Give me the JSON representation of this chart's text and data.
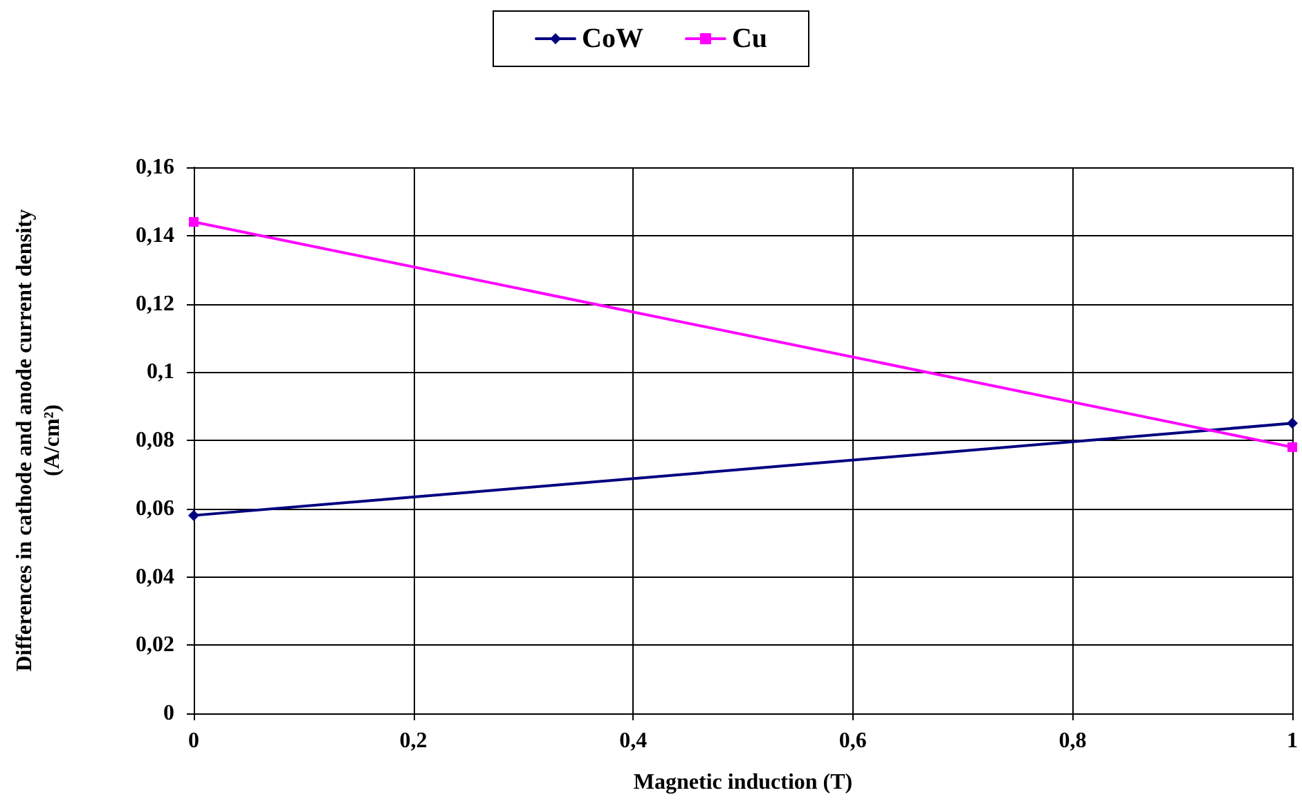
{
  "chart_data": {
    "type": "line",
    "xlabel": "Magnetic induction (T)",
    "ylabel": "Differences in cathode and anode current density\n(A/cm²)",
    "xlim": [
      0,
      1
    ],
    "xticks": [
      0,
      {
        "value": 0.2,
        "label": "0,2"
      },
      {
        "value": 0.4,
        "label": "0,4"
      },
      {
        "value": 0.6,
        "label": "0,6"
      },
      {
        "value": 0.8,
        "label": "0,8"
      },
      1
    ],
    "ylim": [
      0,
      0.16
    ],
    "yticks": [
      0,
      {
        "value": 0.02,
        "label": "0,02"
      },
      {
        "value": 0.04,
        "label": "0,04"
      },
      {
        "value": 0.06,
        "label": "0,06"
      },
      {
        "value": 0.08,
        "label": "0,08"
      },
      {
        "value": 0.1,
        "label": "0,1"
      },
      {
        "value": 0.12,
        "label": "0,12"
      },
      {
        "value": 0.14,
        "label": "0,14"
      },
      {
        "value": 0.16,
        "label": "0,16"
      }
    ],
    "x": [
      0,
      1
    ],
    "series": [
      {
        "name": "CoW",
        "color": "#000080",
        "values": [
          0.058,
          0.085
        ],
        "marker": "diamond"
      },
      {
        "name": "Cu",
        "color": "#ff00ff",
        "values": [
          0.144,
          0.078
        ],
        "marker": "square"
      }
    ],
    "grid": true,
    "legend": "top",
    "line_style": "solid"
  }
}
